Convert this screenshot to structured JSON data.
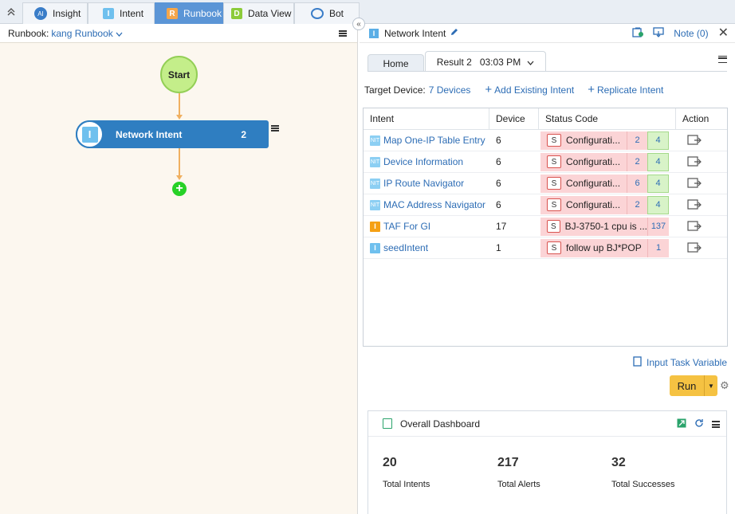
{
  "tabs": [
    {
      "label": "Insight",
      "icon": "insight-ai-icon"
    },
    {
      "label": "Intent",
      "icon": "intent-icon"
    },
    {
      "label": "Runbook",
      "icon": "runbook-icon",
      "active": true
    },
    {
      "label": "Data View",
      "icon": "dataview-icon"
    },
    {
      "label": "Bot",
      "icon": "bot-icon"
    }
  ],
  "runbook": {
    "label": "Runbook:",
    "name": "kang Runbook",
    "start_label": "Start",
    "node": {
      "name": "Network Intent",
      "count": "2",
      "letter": "I"
    }
  },
  "panel": {
    "title": "Network Intent",
    "note": "Note (0)",
    "tabs": [
      {
        "label": "Home"
      },
      {
        "label": "Result 2   03:03 PM",
        "active": true
      }
    ],
    "target_device_label": "Target Device:",
    "target_device_value": "7 Devices",
    "add_existing": "Add Existing Intent",
    "replicate": "Replicate Intent"
  },
  "grid": {
    "headers": [
      "Intent",
      "Device",
      "Status Code",
      "Action"
    ],
    "rows": [
      {
        "name": "Map One-IP Table Entry",
        "device": "6",
        "status": "Configurati...",
        "num": "2",
        "ok": "4",
        "icon": "nit"
      },
      {
        "name": "Device Information",
        "device": "6",
        "status": "Configurati...",
        "num": "2",
        "ok": "4",
        "icon": "nit"
      },
      {
        "name": "IP Route Navigator",
        "device": "6",
        "status": "Configurati...",
        "num": "6",
        "ok": "4",
        "icon": "nit"
      },
      {
        "name": "MAC Address Navigator",
        "device": "6",
        "status": "Configurati...",
        "num": "2",
        "ok": "4",
        "icon": "nit"
      },
      {
        "name": "TAF For GI",
        "device": "17",
        "status": "BJ-3750-1 cpu is ...",
        "num": "137",
        "ok": "",
        "icon": "intent"
      },
      {
        "name": "seedIntent",
        "device": "1",
        "status": "follow up BJ*POP",
        "num": "1",
        "ok": "",
        "icon": "seed"
      }
    ]
  },
  "input_task": "Input Task Variable",
  "run_label": "Run",
  "dashboard": {
    "title": "Overall Dashboard",
    "stats": [
      {
        "value": "20",
        "label": "Total Intents"
      },
      {
        "value": "217",
        "label": "Total Alerts"
      },
      {
        "value": "32",
        "label": "Total Successes"
      }
    ]
  },
  "colors": {
    "accent": "#2f7ec1",
    "active_tab": "#5b95d6",
    "run": "#f5c242",
    "status_fail": "#fbd4d6",
    "status_ok": "#d8f3c8"
  }
}
